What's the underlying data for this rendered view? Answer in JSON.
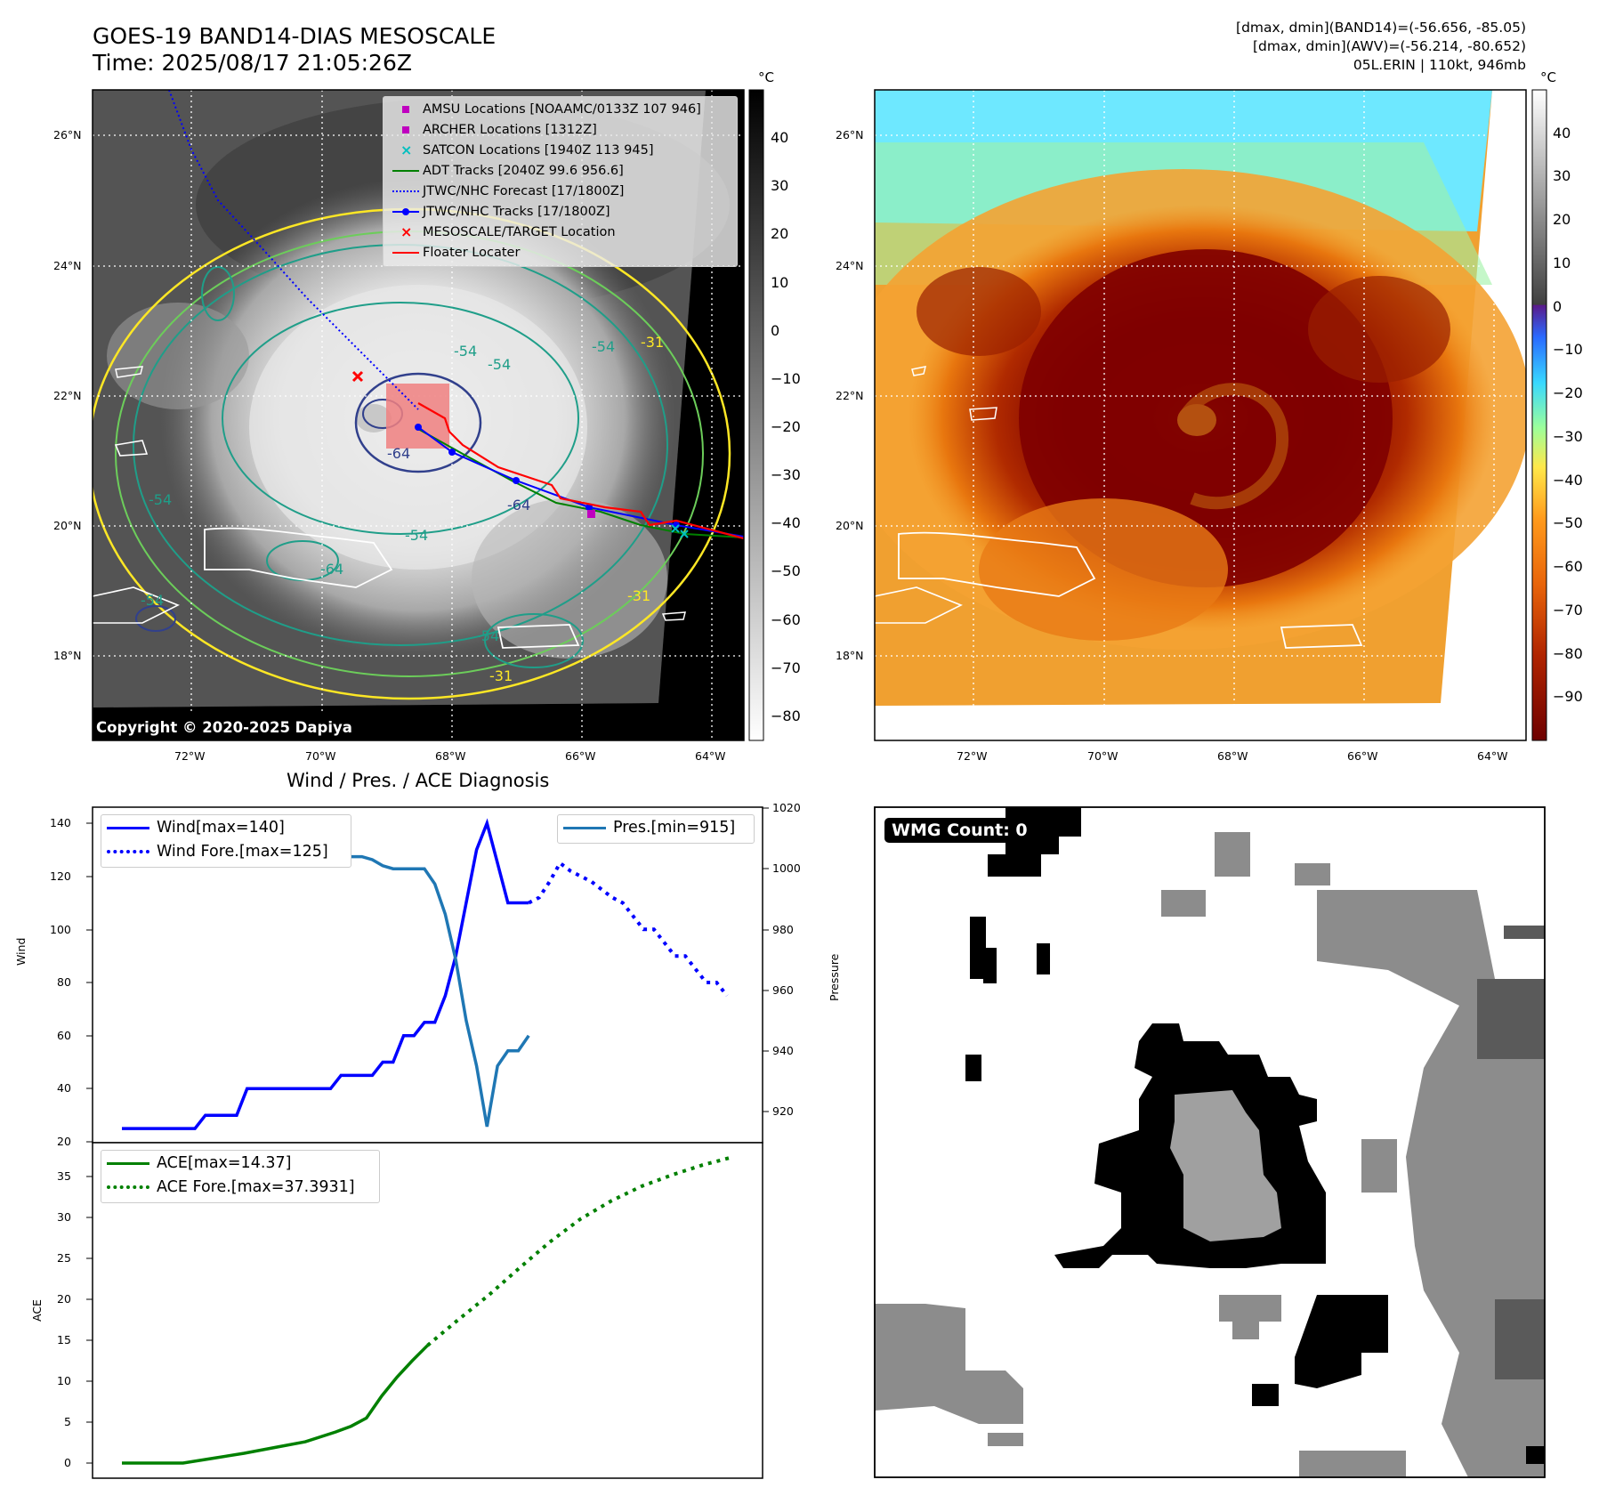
{
  "header": {
    "title_line1": "GOES-19 BAND14-DIAS MESOSCALE",
    "title_line2": "Time: 2025/08/17 21:05:26Z",
    "info_line1": "[dmax, dmin](BAND14)=(-56.656, -85.05)",
    "info_line2": "[dmax, dmin](AWV)=(-56.214, -80.652)",
    "info_line3": "05L.ERIN | 110kt, 946mb"
  },
  "map": {
    "lon_labels": [
      "72°W",
      "70°W",
      "68°W",
      "66°W",
      "64°W"
    ],
    "lat_labels": [
      "26°N",
      "24°N",
      "22°N",
      "20°N",
      "18°N"
    ],
    "copyright": "Copyright © 2020-2025 Dapiya",
    "contour_labels": [
      "-54",
      "-64",
      "-54",
      "-54",
      "-64",
      "-54",
      "-54",
      "-64",
      "-31",
      "-31",
      "-54",
      "-54",
      "-31"
    ],
    "colors": {
      "track": "#0000ff",
      "floater": "#ff0000",
      "adt": "#008000",
      "satcon": "#00bfbf",
      "amsu": "#bf00bf",
      "contour_teal": "#1f9e89",
      "contour_yellow": "#fde725",
      "contour_navy": "#31408c"
    }
  },
  "legend": {
    "items": [
      {
        "label": "AMSU Locations [NOAAMC/0133Z 107 946]",
        "icon": "square-marker-magenta"
      },
      {
        "label": "ARCHER Locations [1312Z]",
        "icon": "square-marker-magenta"
      },
      {
        "label": "SATCON Locations [1940Z 113 945]",
        "icon": "x-marker-cyan"
      },
      {
        "label": "ADT Tracks [2040Z 99.6 956.6]",
        "icon": "solid-line-green"
      },
      {
        "label": "JTWC/NHC Forecast [17/1800Z]",
        "icon": "dotted-line-blue"
      },
      {
        "label": "JTWC/NHC Tracks [17/1800Z]",
        "icon": "line-dot-blue"
      },
      {
        "label": "MESOSCALE/TARGET Location",
        "icon": "x-marker-red"
      },
      {
        "label": "Floater Locater",
        "icon": "solid-line-red"
      }
    ]
  },
  "colorbar_gray": {
    "unit": "°C",
    "ticks": [
      "40",
      "30",
      "20",
      "10",
      "0",
      "−10",
      "−20",
      "−30",
      "−40",
      "−50",
      "−60",
      "−70",
      "−80"
    ]
  },
  "colorbar_color": {
    "unit": "°C",
    "ticks": [
      "40",
      "30",
      "20",
      "10",
      "0",
      "−10",
      "−20",
      "−30",
      "−40",
      "−50",
      "−60",
      "−70",
      "−80",
      "−90"
    ]
  },
  "diagnosis": {
    "title": "Wind / Pres. / ACE Diagnosis",
    "wind_ylabel": "Wind",
    "pres_ylabel": "Pressure",
    "ace_ylabel": "ACE",
    "wind_ticks": [
      "140",
      "120",
      "100",
      "80",
      "60",
      "40",
      "20"
    ],
    "pres_ticks": [
      "1020",
      "1000",
      "980",
      "960",
      "940",
      "920"
    ],
    "ace_ticks": [
      "35",
      "30",
      "25",
      "20",
      "15",
      "10",
      "5",
      "0"
    ],
    "legend_wind": "Wind[max=140]",
    "legend_wind_fore": "Wind Fore.[max=125]",
    "legend_pres": "Pres.[min=915]",
    "legend_ace": "ACE[max=14.37]",
    "legend_ace_fore": "ACE Fore.[max=37.3931]"
  },
  "wmg": {
    "label": "WMG Count: 0"
  },
  "chart_data": [
    {
      "type": "line",
      "title": "Wind / Pres. / ACE Diagnosis",
      "ylabel": "Wind",
      "ylim": [
        20,
        145
      ],
      "series": [
        {
          "name": "Wind[max=140]",
          "color": "#0000ff",
          "style": "solid",
          "x": [
            0,
            1,
            2,
            3,
            4,
            5,
            6,
            7,
            8,
            9,
            10,
            11,
            12,
            13,
            14,
            15,
            16,
            17,
            18,
            19,
            20,
            21,
            22,
            23,
            24,
            25,
            26,
            27,
            28,
            29,
            30,
            31,
            32,
            33,
            34,
            35,
            36,
            37,
            38,
            39
          ],
          "values": [
            25,
            25,
            25,
            25,
            25,
            25,
            25,
            25,
            30,
            30,
            30,
            30,
            40,
            40,
            40,
            40,
            40,
            40,
            40,
            40,
            40,
            45,
            45,
            45,
            45,
            50,
            50,
            60,
            60,
            65,
            65,
            75,
            90,
            110,
            130,
            140,
            125,
            110,
            110,
            110
          ]
        },
        {
          "name": "Wind Fore.[max=125]",
          "color": "#0000ff",
          "style": "dotted",
          "x": [
            39,
            40,
            41,
            42,
            43,
            44,
            45,
            46,
            47,
            48,
            49,
            50,
            51,
            52,
            53,
            54,
            55,
            56,
            57,
            58
          ],
          "values": [
            110,
            112,
            118,
            125,
            122,
            120,
            118,
            115,
            112,
            110,
            105,
            100,
            100,
            95,
            90,
            90,
            85,
            80,
            80,
            75
          ]
        }
      ]
    },
    {
      "type": "line",
      "ylabel": "Pressure",
      "ylim": [
        912,
        1020
      ],
      "series": [
        {
          "name": "Pres.[min=915]",
          "color": "#1f77b4",
          "style": "solid",
          "x": [
            0,
            1,
            2,
            3,
            4,
            5,
            6,
            7,
            8,
            9,
            10,
            11,
            12,
            13,
            14,
            15,
            16,
            17,
            18,
            19,
            20,
            21,
            22,
            23,
            24,
            25,
            26,
            27,
            28,
            29,
            30,
            31,
            32,
            33,
            34,
            35,
            36,
            37,
            38,
            39
          ],
          "values": [
            1012,
            1012,
            1008,
            1007,
            1006,
            1006,
            1006,
            1006,
            1006,
            1006,
            1005,
            1005,
            1005,
            1005,
            1005,
            1006,
            1006,
            1005,
            1005,
            1004,
            1004,
            1004,
            1004,
            1004,
            1003,
            1001,
            1000,
            1000,
            1000,
            1000,
            995,
            985,
            970,
            950,
            935,
            915,
            935,
            940,
            940,
            945
          ]
        }
      ]
    },
    {
      "type": "line",
      "ylabel": "ACE",
      "ylim": [
        -2,
        38
      ],
      "series": [
        {
          "name": "ACE[max=14.37]",
          "color": "#008000",
          "style": "solid",
          "x": [
            0,
            4,
            8,
            12,
            16,
            20,
            24,
            28,
            30,
            32,
            34,
            36,
            38,
            40
          ],
          "values": [
            0,
            0,
            0,
            0.6,
            1.2,
            1.9,
            2.6,
            3.8,
            4.5,
            5.5,
            8.2,
            10.5,
            12.5,
            14.37
          ]
        },
        {
          "name": "ACE Fore.[max=37.3931]",
          "color": "#008000",
          "style": "dotted",
          "x": [
            40,
            44,
            48,
            52,
            56,
            60,
            64,
            68,
            72,
            76,
            80
          ],
          "values": [
            14.37,
            17.5,
            20.5,
            23.8,
            27,
            29.8,
            32,
            33.8,
            35.2,
            36.4,
            37.39
          ]
        }
      ]
    }
  ]
}
